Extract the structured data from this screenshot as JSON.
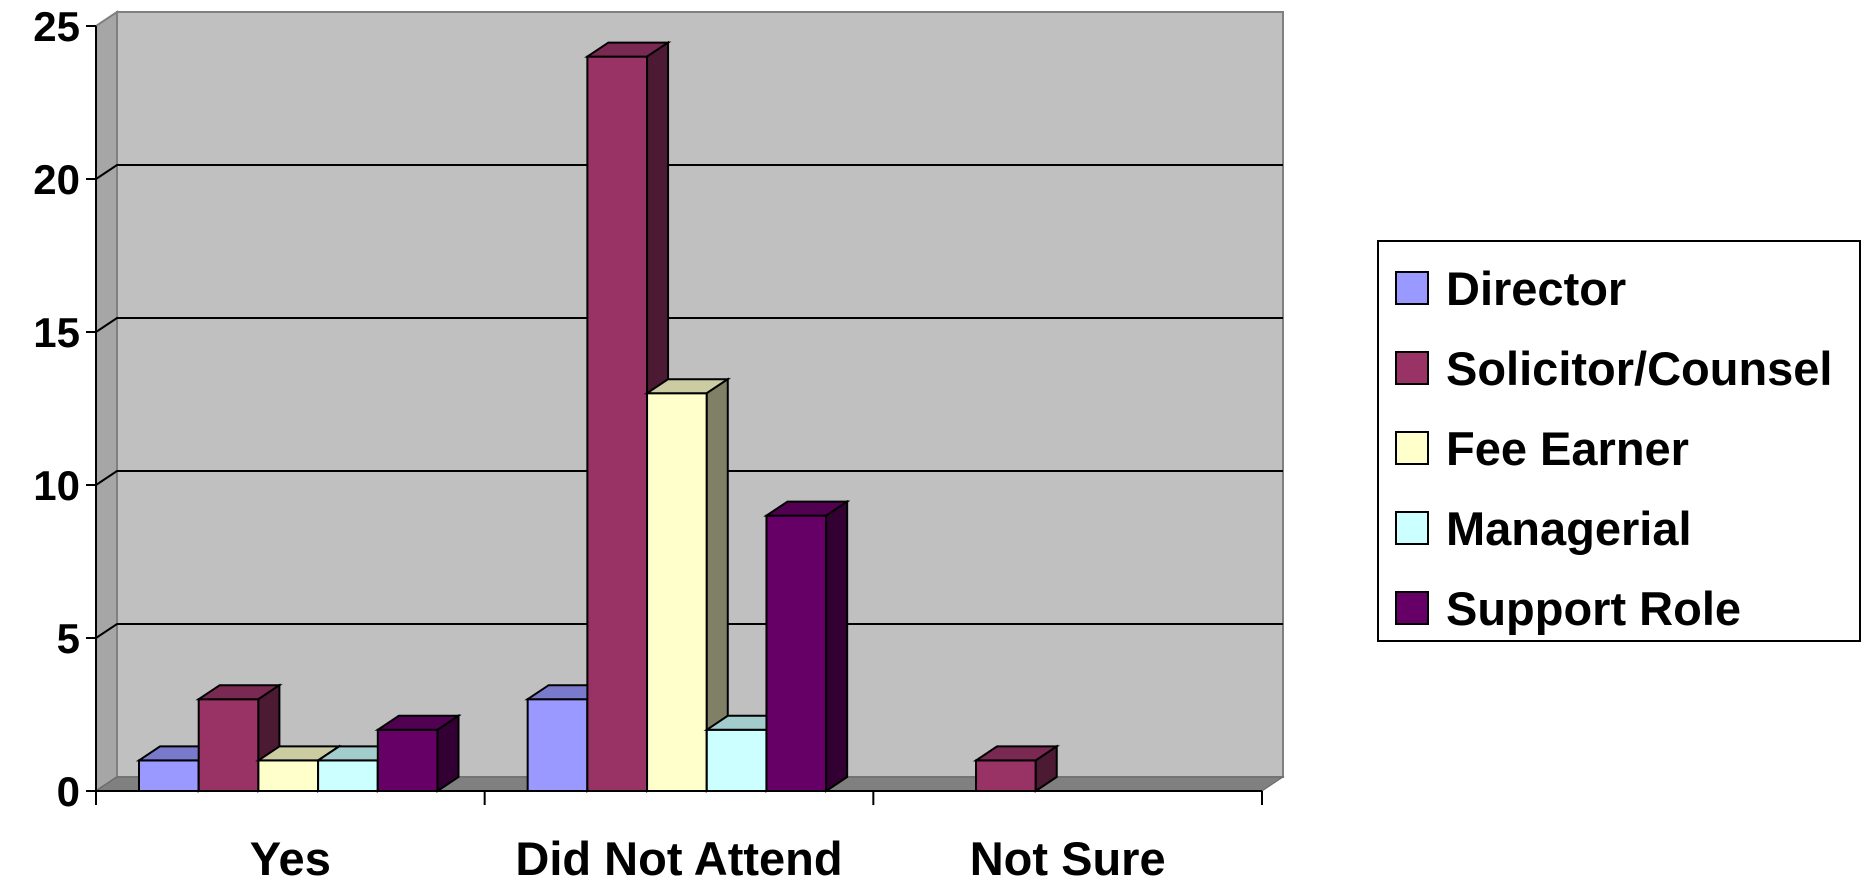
{
  "chart_data": {
    "type": "bar",
    "title": "",
    "xlabel": "",
    "ylabel": "",
    "ylim": [
      0,
      25
    ],
    "yticks": [
      "0",
      "5",
      "10",
      "15",
      "20",
      "25"
    ],
    "categories": [
      "Yes",
      "Did Not Attend",
      "Not Sure"
    ],
    "series": [
      {
        "name": "Director",
        "values": [
          1,
          3,
          0
        ],
        "color": "#9999ff"
      },
      {
        "name": "Solicitor/Counsel",
        "values": [
          3,
          24,
          1
        ],
        "color": "#993366"
      },
      {
        "name": "Fee Earner",
        "values": [
          1,
          13,
          0
        ],
        "color": "#ffffcc"
      },
      {
        "name": "Managerial",
        "values": [
          1,
          2,
          0
        ],
        "color": "#ccffff"
      },
      {
        "name": "Support Role",
        "values": [
          2,
          9,
          0
        ],
        "color": "#660066"
      }
    ],
    "grid": true,
    "legend_position": "right",
    "style": "3d-clustered-column",
    "plot_background": "#c0c0c0"
  }
}
